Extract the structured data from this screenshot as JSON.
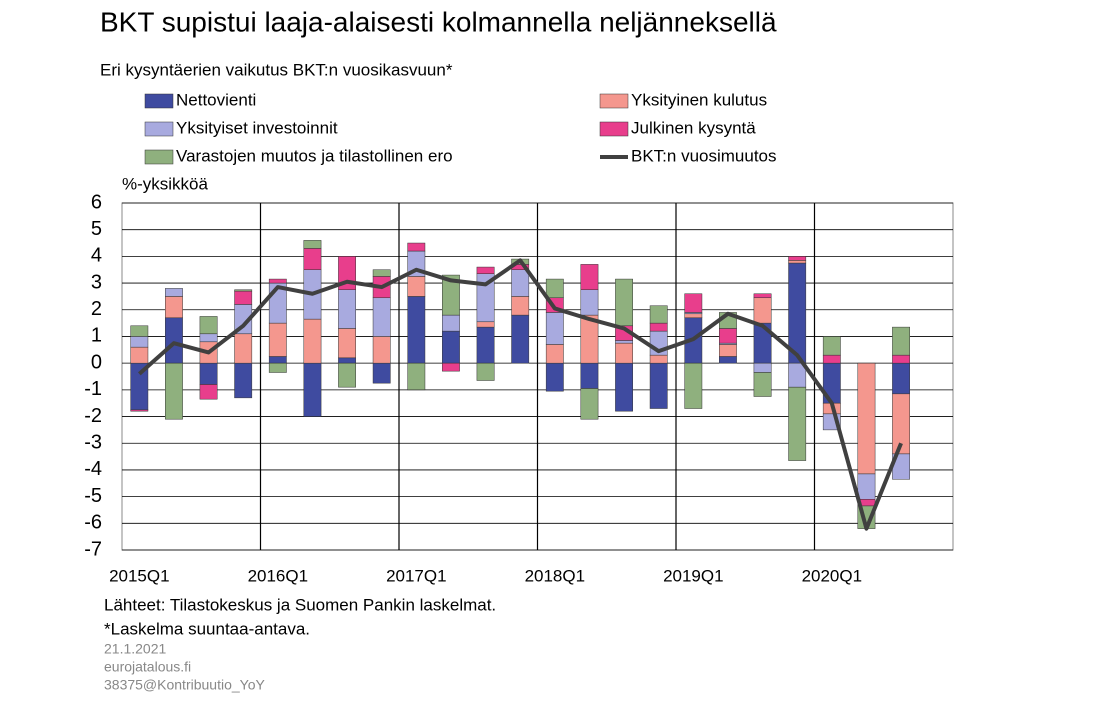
{
  "chart_data": {
    "type": "bar",
    "title": "BKT supistui laaja-alaisesti kolmannella neljänneksellä",
    "subtitle": "Eri kysyntäerien vaikutus BKT:n vuosikasvuun*",
    "y_axis_label": "%-yksikköä",
    "stacked": true,
    "categories": [
      "2015Q1",
      null,
      null,
      null,
      "2016Q1",
      null,
      null,
      null,
      "2017Q1",
      null,
      null,
      null,
      "2018Q1",
      null,
      null,
      null,
      "2019Q1",
      null,
      null,
      null,
      "2020Q1",
      null,
      null,
      null
    ],
    "series": [
      {
        "name": "Nettovienti",
        "color": "#3f4ba0",
        "values": [
          -1.75,
          1.7,
          -0.8,
          -1.3,
          0.25,
          -2.0,
          0.2,
          -0.75,
          2.5,
          1.2,
          1.35,
          1.8,
          -1.05,
          -0.95,
          -1.8,
          -1.7,
          1.7,
          0.25,
          1.5,
          3.75,
          -1.5,
          0,
          -1.15,
          null
        ]
      },
      {
        "name": "Yksityinen kulutus",
        "color": "#f4978e",
        "values": [
          0.6,
          0.8,
          0.8,
          1.1,
          1.25,
          1.65,
          1.1,
          1.0,
          0.75,
          0,
          0.2,
          0.7,
          0.7,
          1.8,
          0.75,
          0.3,
          0.15,
          0.45,
          0.95,
          0.1,
          -0.4,
          -4.15,
          -2.25,
          null
        ]
      },
      {
        "name": "Yksityiset investoinnit",
        "color": "#a8aadf",
        "values": [
          0.4,
          0.3,
          0.3,
          1.1,
          1.5,
          1.85,
          1.45,
          1.45,
          0.95,
          0.6,
          1.8,
          1.0,
          1.2,
          0.95,
          0.1,
          0.9,
          0.05,
          0.05,
          -0.35,
          -0.9,
          -0.6,
          -0.95,
          -0.95,
          null
        ]
      },
      {
        "name": "Julkinen kysyntä",
        "color": "#e83e8c",
        "values": [
          -0.05,
          0,
          -0.55,
          0.5,
          0.15,
          0.8,
          1.25,
          0.8,
          0.3,
          -0.3,
          0.25,
          0.2,
          0.55,
          0.95,
          0.55,
          0.3,
          0.7,
          0.55,
          0.15,
          0.15,
          0.3,
          -0.25,
          0.3,
          null
        ]
      },
      {
        "name": "Varastojen muutos ja tilastollinen ero",
        "color": "#8fb07e",
        "values": [
          0.4,
          -2.1,
          0.65,
          0.05,
          -0.35,
          0.3,
          -0.9,
          0.25,
          -1.0,
          1.5,
          -0.65,
          0.2,
          0.7,
          -1.15,
          1.75,
          0.65,
          -1.7,
          0.6,
          -0.9,
          -2.75,
          0.7,
          -0.85,
          1.05,
          null
        ]
      },
      {
        "name": "BKT:n vuosimuutos",
        "type": "line",
        "color": "#404040",
        "values": [
          -0.4,
          0.75,
          0.4,
          1.4,
          2.85,
          2.6,
          3.05,
          2.85,
          3.5,
          3.1,
          2.95,
          3.85,
          2.05,
          1.65,
          1.3,
          0.45,
          0.9,
          1.85,
          1.4,
          0.3,
          -1.5,
          -6.2,
          -3.0,
          null
        ]
      }
    ],
    "ylim": [
      -7,
      6
    ],
    "yticks": [
      -7,
      -6,
      -5,
      -4,
      -3,
      -2,
      -1,
      0,
      1,
      2,
      3,
      4,
      5,
      6
    ],
    "grid": true,
    "notes": [
      "Lähteet: Tilastokeskus ja Suomen Pankin laskelmat.",
      "*Laskelma suuntaa-antava."
    ],
    "footer": [
      "21.1.2021",
      "eurojatalous.fi",
      "38375@Kontribuutio_YoY"
    ]
  }
}
